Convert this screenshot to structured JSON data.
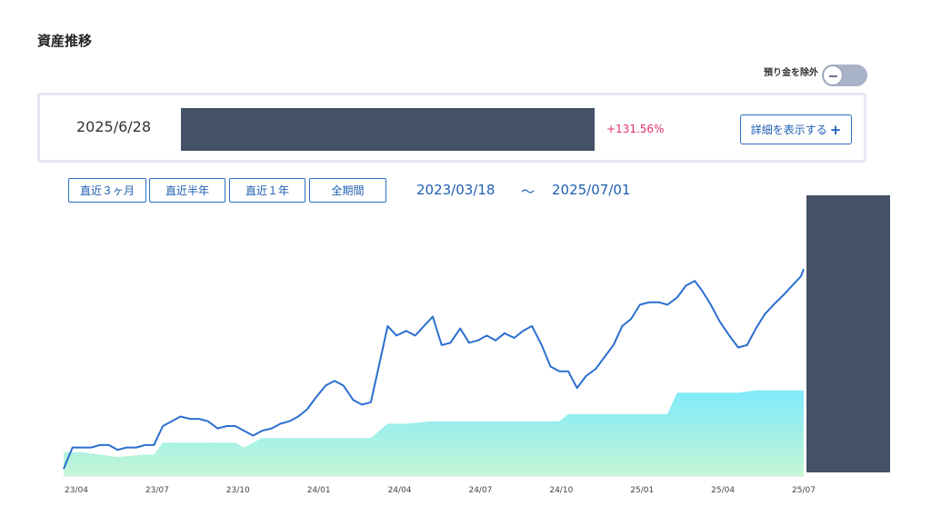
{
  "page": {
    "title": "資産推移"
  },
  "toggle": {
    "label": "預り金を除外",
    "state": "off"
  },
  "summary": {
    "date": "2025/6/28",
    "change_pct": "+131.56%",
    "detail_label": "詳細を表示する",
    "detail_icon": "plus-icon"
  },
  "range_buttons": [
    "直近３ヶ月",
    "直近半年",
    "直近１年",
    "全期間"
  ],
  "date_range": {
    "start": "2023/03/18",
    "separator": "～",
    "end": "2025/07/01"
  },
  "colors": {
    "line": "#2b6fcf",
    "area_top": "#7eeafa",
    "area_bottom": "#c6f6d6",
    "accent": "#1e5fb3",
    "positive": "#e0306a"
  },
  "chart_data": {
    "type": "line",
    "title": "",
    "xlabel": "",
    "ylabel": "",
    "x_ticks": [
      "23/04",
      "23/07",
      "23/10",
      "24/01",
      "24/04",
      "24/07",
      "24/10",
      "25/01",
      "25/04",
      "25/07"
    ],
    "x_range": [
      "2023-03-18",
      "2025-07-01"
    ],
    "y_range": [
      0,
      100
    ],
    "y_axis_labels_visible": false,
    "series": [
      {
        "kind": "line",
        "points": [
          [
            "2023-03-18",
            3
          ],
          [
            "2023-03-28",
            12
          ],
          [
            "2023-04-08",
            12
          ],
          [
            "2023-04-18",
            12
          ],
          [
            "2023-04-28",
            13
          ],
          [
            "2023-05-08",
            13
          ],
          [
            "2023-05-18",
            11
          ],
          [
            "2023-05-28",
            12
          ],
          [
            "2023-06-08",
            12
          ],
          [
            "2023-06-18",
            13
          ],
          [
            "2023-06-28",
            13
          ],
          [
            "2023-07-08",
            21
          ],
          [
            "2023-07-18",
            23
          ],
          [
            "2023-07-28",
            25
          ],
          [
            "2023-08-08",
            24
          ],
          [
            "2023-08-18",
            24
          ],
          [
            "2023-08-28",
            23
          ],
          [
            "2023-09-08",
            20
          ],
          [
            "2023-09-18",
            21
          ],
          [
            "2023-09-28",
            21
          ],
          [
            "2023-10-08",
            19
          ],
          [
            "2023-10-18",
            17
          ],
          [
            "2023-10-28",
            19
          ],
          [
            "2023-11-08",
            20
          ],
          [
            "2023-11-18",
            22
          ],
          [
            "2023-11-28",
            23
          ],
          [
            "2023-12-08",
            25
          ],
          [
            "2023-12-18",
            28
          ],
          [
            "2023-12-28",
            33
          ],
          [
            "2024-01-08",
            38
          ],
          [
            "2024-01-18",
            40
          ],
          [
            "2024-01-28",
            38
          ],
          [
            "2024-02-08",
            32
          ],
          [
            "2024-02-18",
            30
          ],
          [
            "2024-02-28",
            31
          ],
          [
            "2024-03-08",
            46
          ],
          [
            "2024-03-18",
            63
          ],
          [
            "2024-03-28",
            59
          ],
          [
            "2024-04-08",
            61
          ],
          [
            "2024-04-18",
            59
          ],
          [
            "2024-04-28",
            63
          ],
          [
            "2024-05-08",
            67
          ],
          [
            "2024-05-18",
            55
          ],
          [
            "2024-05-28",
            56
          ],
          [
            "2024-06-08",
            62
          ],
          [
            "2024-06-18",
            56
          ],
          [
            "2024-06-28",
            57
          ],
          [
            "2024-07-08",
            59
          ],
          [
            "2024-07-18",
            57
          ],
          [
            "2024-07-28",
            60
          ],
          [
            "2024-08-08",
            58
          ],
          [
            "2024-08-18",
            61
          ],
          [
            "2024-08-28",
            63
          ],
          [
            "2024-09-08",
            55
          ],
          [
            "2024-09-18",
            46
          ],
          [
            "2024-09-28",
            44
          ],
          [
            "2024-10-08",
            44
          ],
          [
            "2024-10-18",
            37
          ],
          [
            "2024-10-28",
            42
          ],
          [
            "2024-11-08",
            45
          ],
          [
            "2024-11-18",
            50
          ],
          [
            "2024-11-28",
            55
          ],
          [
            "2024-12-08",
            63
          ],
          [
            "2024-12-18",
            66
          ],
          [
            "2024-12-28",
            72
          ],
          [
            "2025-01-08",
            73
          ],
          [
            "2025-01-18",
            73
          ],
          [
            "2025-01-28",
            72
          ],
          [
            "2025-02-08",
            75
          ],
          [
            "2025-02-18",
            80
          ],
          [
            "2025-02-28",
            82
          ],
          [
            "2025-03-08",
            78
          ],
          [
            "2025-03-18",
            72
          ],
          [
            "2025-03-28",
            65
          ],
          [
            "2025-04-08",
            59
          ],
          [
            "2025-04-18",
            54
          ],
          [
            "2025-04-28",
            55
          ],
          [
            "2025-05-08",
            62
          ],
          [
            "2025-05-18",
            68
          ],
          [
            "2025-05-28",
            72
          ],
          [
            "2025-06-08",
            76
          ],
          [
            "2025-06-18",
            80
          ],
          [
            "2025-06-28",
            84
          ],
          [
            "2025-07-01",
            87
          ]
        ]
      },
      {
        "kind": "area",
        "points": [
          [
            "2023-03-18",
            10
          ],
          [
            "2023-04-08",
            10
          ],
          [
            "2023-05-18",
            8
          ],
          [
            "2023-06-18",
            9
          ],
          [
            "2023-06-28",
            9
          ],
          [
            "2023-07-08",
            14
          ],
          [
            "2023-08-28",
            14
          ],
          [
            "2023-09-28",
            14
          ],
          [
            "2023-10-08",
            12
          ],
          [
            "2023-10-18",
            14
          ],
          [
            "2023-10-28",
            16
          ],
          [
            "2023-12-28",
            16
          ],
          [
            "2024-02-28",
            16
          ],
          [
            "2024-03-18",
            22
          ],
          [
            "2024-04-08",
            22
          ],
          [
            "2024-05-08",
            23
          ],
          [
            "2024-08-28",
            23
          ],
          [
            "2024-09-28",
            23
          ],
          [
            "2024-10-08",
            26
          ],
          [
            "2025-01-28",
            26
          ],
          [
            "2025-02-08",
            35
          ],
          [
            "2025-04-18",
            35
          ],
          [
            "2025-05-08",
            36
          ],
          [
            "2025-07-01",
            36
          ]
        ]
      }
    ]
  }
}
